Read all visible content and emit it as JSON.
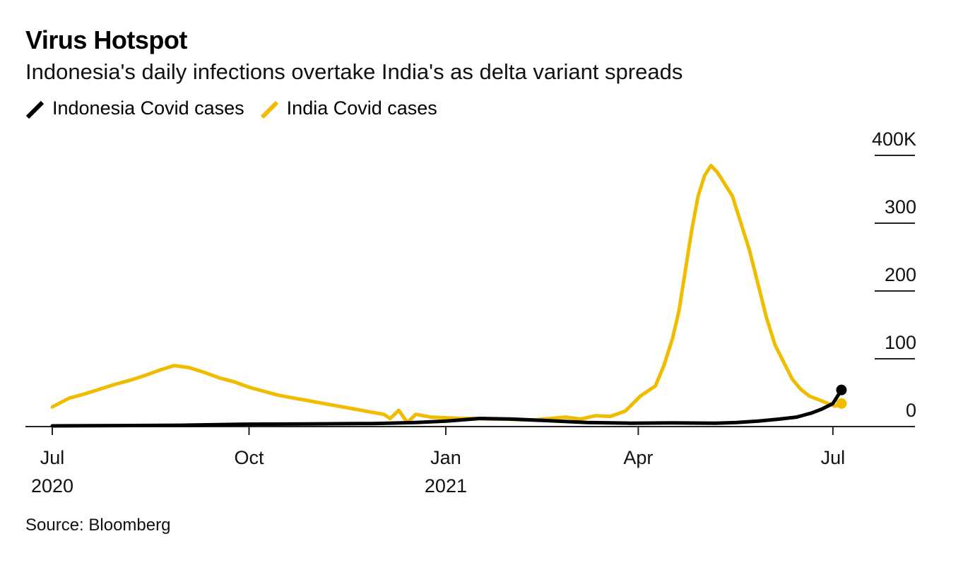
{
  "header": {
    "title": "Virus Hotspot",
    "subtitle": "Indonesia's daily infections overtake India's as delta variant spreads"
  },
  "legend": {
    "items": [
      {
        "label": "Indonesia Covid cases",
        "color": "#000000"
      },
      {
        "label": "India Covid cases",
        "color": "#f0bc00"
      }
    ]
  },
  "footer": {
    "source": "Source: Bloomberg"
  },
  "chart_data": {
    "type": "line",
    "title": "Virus Hotspot",
    "subtitle": "Indonesia's daily infections overtake India's as delta variant spreads",
    "xlabel": "",
    "ylabel": "",
    "y_axis_position": "right",
    "ylim": [
      0,
      400
    ],
    "y_unit": "thousands of daily cases",
    "y_ticks": [
      {
        "value": 0,
        "label": "0"
      },
      {
        "value": 100,
        "label": "100"
      },
      {
        "value": 200,
        "label": "200"
      },
      {
        "value": 300,
        "label": "300"
      },
      {
        "value": 400,
        "label": "400K"
      }
    ],
    "x_domain": [
      0,
      371
    ],
    "x_ticks": [
      {
        "value": 0,
        "label": "Jul",
        "sublabel": "2020"
      },
      {
        "value": 92,
        "label": "Oct",
        "sublabel": ""
      },
      {
        "value": 184,
        "label": "Jan",
        "sublabel": "2021"
      },
      {
        "value": 274,
        "label": "Apr",
        "sublabel": ""
      },
      {
        "value": 365,
        "label": "Jul",
        "sublabel": ""
      }
    ],
    "grid": false,
    "legend_position": "top-left",
    "series": [
      {
        "name": "India Covid cases",
        "color": "#f0bc00",
        "end_marker": true,
        "x": [
          0,
          8,
          15,
          22,
          29,
          36,
          43,
          50,
          57,
          64,
          71,
          78,
          85,
          92,
          99,
          106,
          113,
          120,
          127,
          134,
          141,
          148,
          155,
          158,
          162,
          166,
          170,
          177,
          184,
          191,
          198,
          205,
          212,
          219,
          226,
          233,
          240,
          247,
          254,
          261,
          268,
          275,
          282,
          286,
          290,
          293,
          296,
          299,
          302,
          305,
          308,
          311,
          314,
          318,
          322,
          326,
          330,
          334,
          338,
          342,
          346,
          350,
          354,
          358,
          362,
          366,
          369
        ],
        "values": [
          29,
          42,
          48,
          55,
          62,
          68,
          75,
          83,
          90,
          87,
          80,
          72,
          66,
          58,
          52,
          46,
          42,
          38,
          34,
          30,
          26,
          22,
          18,
          12,
          24,
          6,
          18,
          14,
          13,
          12,
          12,
          11,
          11,
          10,
          10,
          12,
          14,
          11,
          16,
          15,
          23,
          45,
          60,
          90,
          130,
          170,
          230,
          290,
          340,
          370,
          385,
          375,
          360,
          340,
          300,
          260,
          210,
          160,
          120,
          95,
          70,
          55,
          45,
          40,
          35,
          30,
          34
        ]
      },
      {
        "name": "Indonesia Covid cases",
        "color": "#000000",
        "end_marker": true,
        "x": [
          0,
          30,
          60,
          90,
          120,
          150,
          170,
          184,
          200,
          215,
          230,
          250,
          270,
          290,
          310,
          320,
          330,
          340,
          348,
          355,
          360,
          365,
          369
        ],
        "values": [
          1,
          1.5,
          2,
          3.5,
          4,
          4.5,
          6,
          8,
          12,
          11,
          9,
          6,
          5,
          5.5,
          5,
          6,
          8,
          11,
          14,
          20,
          26,
          34,
          54
        ]
      }
    ]
  }
}
